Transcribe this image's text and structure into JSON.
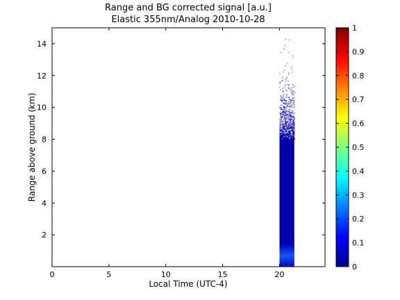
{
  "chart_data": {
    "type": "heatmap",
    "title": "Range and BG corrected signal [a.u.]",
    "subtitle": "Elastic 355nm/Analog 2010-10-28",
    "xlabel": "Local Time (UTC-4)",
    "ylabel": "Range above ground (km)",
    "xlim": [
      0,
      24
    ],
    "ylim": [
      0,
      15
    ],
    "xticks": [
      0,
      5,
      10,
      15,
      20
    ],
    "yticks": [
      2,
      4,
      6,
      8,
      10,
      12,
      14
    ],
    "colorbar": {
      "colormap": "jet",
      "lim": [
        0,
        1
      ],
      "ticks": [
        0,
        0.1,
        0.2,
        0.3,
        0.4,
        0.5,
        0.6,
        0.7,
        0.8,
        0.9,
        1
      ]
    },
    "data_block": {
      "x_start": 20.0,
      "x_end": 21.3,
      "solid_top_km": 8.0,
      "sparse_top_km": 13.0,
      "outliers_top_km": 14.4,
      "base_value": 0.04,
      "near_ground_value": 0.2,
      "near_ground_km": 1.0
    },
    "grid": false,
    "background": "#ffffff"
  }
}
